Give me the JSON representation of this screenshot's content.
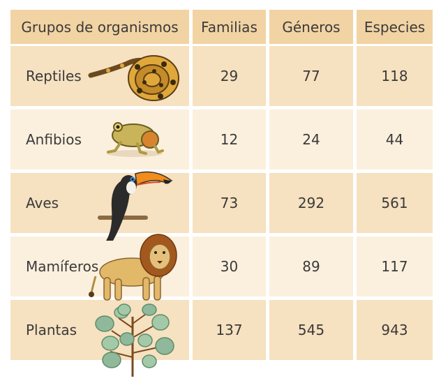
{
  "headers": [
    "Grupos de organismos",
    "Familias",
    "Géneros",
    "Especies"
  ],
  "rows": [
    {
      "group": "Reptiles",
      "familias": "29",
      "generos": "77",
      "especies": "118",
      "icon": "snake-icon"
    },
    {
      "group": "Anfibios",
      "familias": "12",
      "generos": "24",
      "especies": "44",
      "icon": "frog-icon"
    },
    {
      "group": "Aves",
      "familias": "73",
      "generos": "292",
      "especies": "561",
      "icon": "toucan-icon"
    },
    {
      "group": "Mamíferos",
      "familias": "30",
      "generos": "89",
      "especies": "117",
      "icon": "lion-icon"
    },
    {
      "group": "Plantas",
      "familias": "137",
      "generos": "545",
      "especies": "943",
      "icon": "plant-icon"
    }
  ],
  "colors": {
    "header_bg": "#f2d3a3",
    "row_odd_bg": "#f6e1c0",
    "row_even_bg": "#fbf0de",
    "text": "#3a3a3a"
  }
}
